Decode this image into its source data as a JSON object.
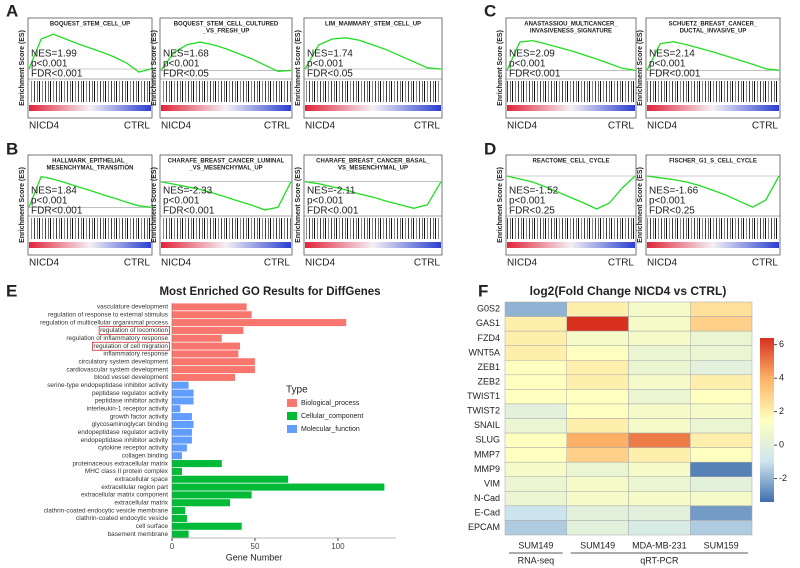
{
  "chart_data": [
    {
      "type": "gsea",
      "panel_label": "A",
      "ylabel": "Enrichment Score (ES)",
      "xlabels": [
        "NICD4",
        "CTRL"
      ],
      "color": "#22dd22",
      "x": [
        0,
        0.1,
        0.2,
        0.3,
        0.4,
        0.5,
        0.6,
        0.7,
        0.8,
        0.9,
        1
      ],
      "plots": [
        {
          "title": [
            "BOQUEST_STEM_CELL_UP"
          ],
          "stats": [
            "NES=1.99",
            "p<0.001",
            "FDR<0.001"
          ],
          "ylim": [
            -0.15,
            0.65
          ],
          "es": [
            0,
            0.5,
            0.58,
            0.5,
            0.42,
            0.35,
            0.28,
            0.2,
            0.1,
            -0.05,
            0
          ]
        },
        {
          "title": [
            "BOQUEST_STEM_CELL_CULTURED",
            "_VS_FRESH_UP"
          ],
          "stats": [
            "NES=1.68",
            "p<0.001",
            "FDR<0.05"
          ],
          "ylim": [
            -0.15,
            0.65
          ],
          "es": [
            0,
            0.35,
            0.5,
            0.55,
            0.5,
            0.42,
            0.32,
            0.22,
            0.1,
            -0.02,
            0
          ]
        },
        {
          "title": [
            "LIM_MAMMARY_STEM_CELL_UP"
          ],
          "stats": [
            "NES=1.74",
            "p<0.001",
            "FDR<0.05"
          ],
          "ylim": [
            -0.15,
            0.65
          ],
          "es": [
            0,
            0.4,
            0.5,
            0.52,
            0.48,
            0.4,
            0.32,
            0.22,
            0.12,
            0.02,
            0
          ]
        }
      ]
    },
    {
      "type": "gsea",
      "panel_label": "B",
      "ylabel": "Enrichment Score (ES)",
      "xlabels": [
        "NICD4",
        "CTRL"
      ],
      "color": "#22dd22",
      "x": [
        0,
        0.1,
        0.2,
        0.3,
        0.4,
        0.5,
        0.6,
        0.7,
        0.8,
        0.9,
        1
      ],
      "plots": [
        {
          "title": [
            "HALLMARK_EPITHELIAL_",
            "MESENCHYMAL_TRANSITION"
          ],
          "stats": [
            "NES=1.84",
            "p<0.001",
            "FDR<0.001"
          ],
          "ylim": [
            -0.15,
            0.65
          ],
          "es": [
            0,
            0.6,
            0.55,
            0.48,
            0.4,
            0.33,
            0.25,
            0.18,
            0.1,
            0.03,
            0
          ]
        },
        {
          "title": [
            "CHARAFE_BREAST_CANCER_LUMINAL",
            "_VS_MESENCHYMAL_UP"
          ],
          "stats": [
            "NES=-2.33",
            "p<0.001",
            "FDR<0.001"
          ],
          "ylim": [
            -0.65,
            0.15
          ],
          "es": [
            0,
            -0.05,
            -0.1,
            -0.15,
            -0.22,
            -0.3,
            -0.38,
            -0.46,
            -0.55,
            -0.5,
            0
          ]
        },
        {
          "title": [
            "CHARAFE_BREAST_CANCER_BASAL_",
            "VS_MESENCHYMAL_UP"
          ],
          "stats": [
            "NES=-2.11",
            "p<0.001",
            "FDR<0.001"
          ],
          "ylim": [
            -0.65,
            0.15
          ],
          "es": [
            0,
            -0.04,
            -0.1,
            -0.16,
            -0.24,
            -0.3,
            -0.38,
            -0.45,
            -0.52,
            -0.45,
            0
          ]
        }
      ]
    },
    {
      "type": "gsea",
      "panel_label": "C",
      "ylabel": "Enrichment Score (ES)",
      "xlabels": [
        "NICD4",
        "CTRL"
      ],
      "color": "#22dd22",
      "x": [
        0,
        0.1,
        0.2,
        0.3,
        0.4,
        0.5,
        0.6,
        0.7,
        0.8,
        0.9,
        1
      ],
      "plots": [
        {
          "title": [
            "ANASTASSIOU_MULTICANCER_",
            "INVASIVENESS_SIGNATURE"
          ],
          "stats": [
            "NES=2.09",
            "p<0.001",
            "FDR<0.001"
          ],
          "ylim": [
            -0.15,
            0.65
          ],
          "es": [
            0,
            0.55,
            0.58,
            0.52,
            0.45,
            0.38,
            0.3,
            0.22,
            0.13,
            0.04,
            0
          ]
        },
        {
          "title": [
            "SCHUETZ_BREAST_CANCER_",
            "DUCTAL_INVASIVE_UP"
          ],
          "stats": [
            "NES=2.14",
            "p<0.001",
            "FDR<0.001"
          ],
          "ylim": [
            -0.15,
            0.65
          ],
          "es": [
            0,
            0.52,
            0.56,
            0.5,
            0.43,
            0.36,
            0.28,
            0.2,
            0.12,
            0.03,
            0
          ]
        }
      ]
    },
    {
      "type": "gsea",
      "panel_label": "D",
      "ylabel": "Enrichment Score (ES)",
      "xlabels": [
        "NICD4",
        "CTRL"
      ],
      "color": "#22dd22",
      "x": [
        0,
        0.1,
        0.2,
        0.3,
        0.4,
        0.5,
        0.6,
        0.7,
        0.8,
        0.9,
        1
      ],
      "plots": [
        {
          "title": [
            "REACTOME_CELL_CYCLE"
          ],
          "stats": [
            "NES=-1.52",
            "p<0.001",
            "FDR<0.25"
          ],
          "ylim": [
            -0.65,
            0.15
          ],
          "es": [
            0,
            -0.05,
            -0.1,
            -0.18,
            -0.27,
            -0.36,
            -0.45,
            -0.55,
            -0.45,
            -0.2,
            0
          ]
        },
        {
          "title": [
            "FISCHER_G1_S_CELL_CYCLE"
          ],
          "stats": [
            "NES=-1.66",
            "p<0.001",
            "FDR<0.25"
          ],
          "ylim": [
            -0.65,
            0.15
          ],
          "es": [
            0,
            -0.03,
            -0.06,
            -0.1,
            -0.16,
            -0.24,
            -0.32,
            -0.42,
            -0.52,
            -0.4,
            0
          ]
        }
      ]
    },
    {
      "type": "hbar",
      "panel_label": "E",
      "title": "Most Enriched GO Results for DiffGenes",
      "xlabel": "Gene Number",
      "xlim": [
        0,
        135
      ],
      "xticks": [
        0,
        50,
        100
      ],
      "legend_title": "Type",
      "box_color": "#cc3333",
      "series": [
        {
          "name": "Biological_process",
          "color": "#f8766d",
          "categories": [
            "vasculature development",
            "regulation of response to external stimulus",
            "regulation of multicellular organismal process",
            "regulation of locomotion",
            "regulation of inflammatory response",
            "regulation of cell migration",
            "inflammatory response",
            "circulatory system development",
            "cardiovascular system development",
            "blood vessel development"
          ],
          "values": [
            45,
            48,
            105,
            43,
            30,
            41,
            40,
            50,
            50,
            38
          ],
          "boxed": [
            false,
            false,
            false,
            true,
            false,
            true,
            false,
            false,
            false,
            false
          ]
        },
        {
          "name": "Molecular_function",
          "color": "#619cff",
          "categories": [
            "serine-type endopeptidase inhibitor activity",
            "peptidase regulator activity",
            "peptidase inhibitor activity",
            "interleukin-1 receptor activity",
            "growth factor activity",
            "glycosaminoglycan binding",
            "endopeptidase regulator activity",
            "endopeptidase inhibitor activity",
            "cytokine receptor activity",
            "collagen binding"
          ],
          "values": [
            10,
            13,
            13,
            5,
            12,
            13,
            12,
            12,
            9,
            6
          ],
          "boxed": [
            false,
            false,
            false,
            false,
            false,
            false,
            false,
            false,
            false,
            false
          ]
        },
        {
          "name": "Cellular_component",
          "color": "#00ba38",
          "categories": [
            "proteinaceous extracellular matrix",
            "MHC class II protein complex",
            "extracellular space",
            "extracellular region part",
            "extracellular matrix component",
            "extracellular matrix",
            "clathrin-coated endocytic vesicle membrane",
            "clathrin-coated endocytic vesicle",
            "cell surface",
            "basement membrane"
          ],
          "values": [
            30,
            6,
            70,
            128,
            48,
            35,
            8,
            9,
            42,
            10
          ],
          "boxed": [
            false,
            false,
            false,
            false,
            false,
            false,
            false,
            false,
            false,
            false
          ]
        }
      ],
      "legend_order": [
        "Biological_process",
        "Cellular_component",
        "Molecular_function"
      ]
    },
    {
      "type": "heatmap",
      "panel_label": "F",
      "title": "log2(Fold Change NICD4 vs CTRL)",
      "rows": [
        "G0S2",
        "GAS1",
        "FZD4",
        "WNT5A",
        "ZEB1",
        "ZEB2",
        "TWIST1",
        "TWIST2",
        "SNAIL",
        "SLUG",
        "MMP7",
        "MMP9",
        "VIM",
        "N-Cad",
        "E-Cad",
        "EPCAM"
      ],
      "row_colors": [
        "#222",
        "#d42020",
        "#222",
        "#222",
        "#222",
        "#222",
        "#222",
        "#222",
        "#222",
        "#d42020",
        "#222",
        "#222",
        "#222",
        "#222",
        "#222",
        "#222"
      ],
      "column_groups": [
        {
          "label": "RNA-seq",
          "columns": [
            "SUM149"
          ]
        },
        {
          "label": "qRT-PCR",
          "columns": [
            "SUM149",
            "MDA-MB-231",
            "SUM159"
          ]
        }
      ],
      "values": [
        [
          -2,
          2,
          1,
          2.5
        ],
        [
          2,
          6.5,
          1,
          3
        ],
        [
          2,
          1,
          1,
          0.5
        ],
        [
          2,
          1.5,
          0.5,
          0.5
        ],
        [
          1.5,
          2,
          0.5,
          0
        ],
        [
          1.5,
          2,
          1,
          2
        ],
        [
          1.5,
          1.5,
          0.5,
          1.5
        ],
        [
          0,
          1.5,
          1,
          1
        ],
        [
          0.5,
          2,
          1,
          0.5
        ],
        [
          1.5,
          4,
          5,
          2
        ],
        [
          1.5,
          3,
          2,
          1.5
        ],
        [
          1,
          0.5,
          1,
          -3
        ],
        [
          0.5,
          1,
          0.5,
          0
        ],
        [
          0.5,
          1,
          1,
          1
        ],
        [
          -1,
          0,
          0,
          -2.5
        ],
        [
          -1.5,
          0,
          -0.5,
          -1.5
        ]
      ],
      "clim": [
        -3.4,
        6.4
      ],
      "cticks": [
        -2,
        0,
        2,
        4,
        6
      ],
      "colors": [
        "#3f6fae",
        "#cfe6ee",
        "#ffffbf",
        "#fdb366",
        "#d7301f"
      ]
    }
  ]
}
